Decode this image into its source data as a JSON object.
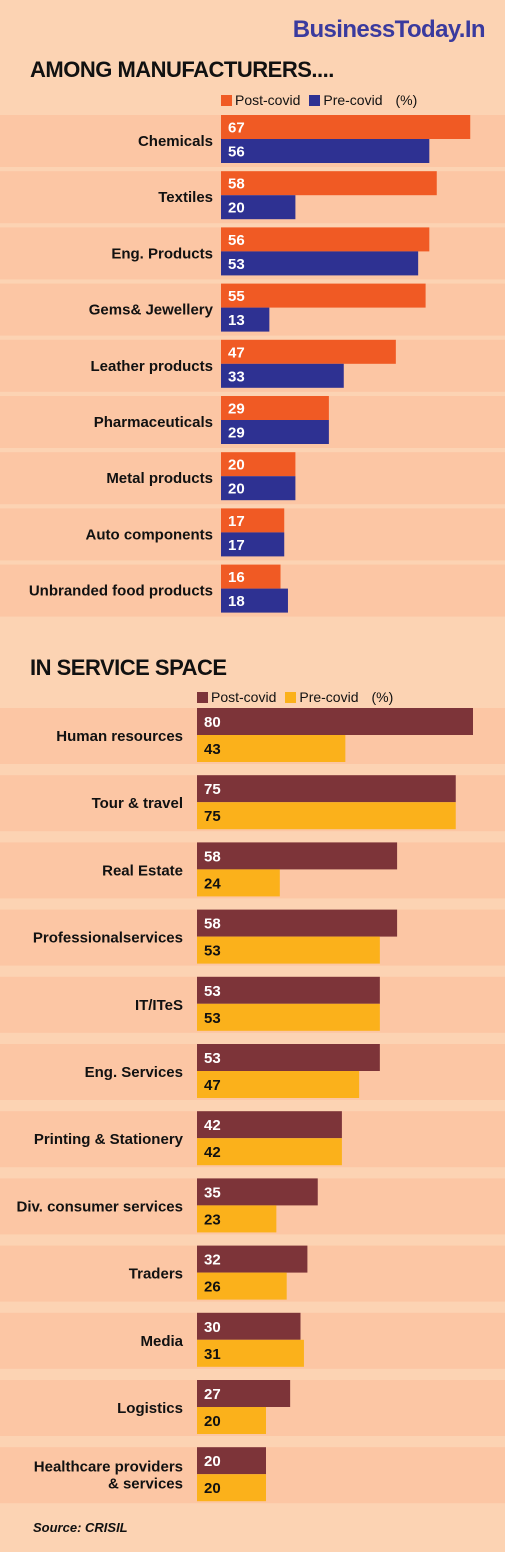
{
  "brand": "BusinessToday.In",
  "source": "Source: CRISIL",
  "chart_data": [
    {
      "type": "bar",
      "orientation": "horizontal",
      "title": "AMONG MANUFACTURERS....",
      "unit_label": "(%)",
      "categories": [
        "Chemicals",
        "Textiles",
        "Eng. Products",
        "Gems& Jewellery",
        "Leather products",
        "Pharmaceuticals",
        "Metal products",
        "Auto components",
        "Unbranded food products"
      ],
      "series": [
        {
          "name": "Post-covid",
          "color": "#f05a24",
          "values": [
            67,
            58,
            56,
            55,
            47,
            29,
            20,
            17,
            16
          ]
        },
        {
          "name": "Pre-covid",
          "color": "#2e3192",
          "values": [
            56,
            20,
            53,
            13,
            33,
            29,
            20,
            17,
            18
          ]
        }
      ],
      "band_colors": [
        "#fcc6a4",
        "#fcd3b3"
      ]
    },
    {
      "type": "bar",
      "orientation": "horizontal",
      "title": "IN SERVICE SPACE",
      "unit_label": "(%)",
      "categories": [
        "Human resources",
        "Tour & travel",
        "Real Estate",
        "Professionalservices",
        "IT/ITeS",
        "Eng. Services",
        "Printing & Stationery",
        "Div. consumer services",
        "Traders",
        "Media",
        "Logistics",
        "Healthcare providers\n& services"
      ],
      "series": [
        {
          "name": "Post-covid",
          "color": "#7d3439",
          "values": [
            80,
            75,
            58,
            58,
            53,
            53,
            42,
            35,
            32,
            30,
            27,
            20
          ]
        },
        {
          "name": "Pre-covid",
          "color": "#fbb11b",
          "values": [
            43,
            75,
            24,
            53,
            53,
            47,
            42,
            23,
            26,
            31,
            20,
            20
          ]
        }
      ],
      "band_colors": [
        "#fcc6a4",
        "#fcd3b3"
      ]
    }
  ]
}
